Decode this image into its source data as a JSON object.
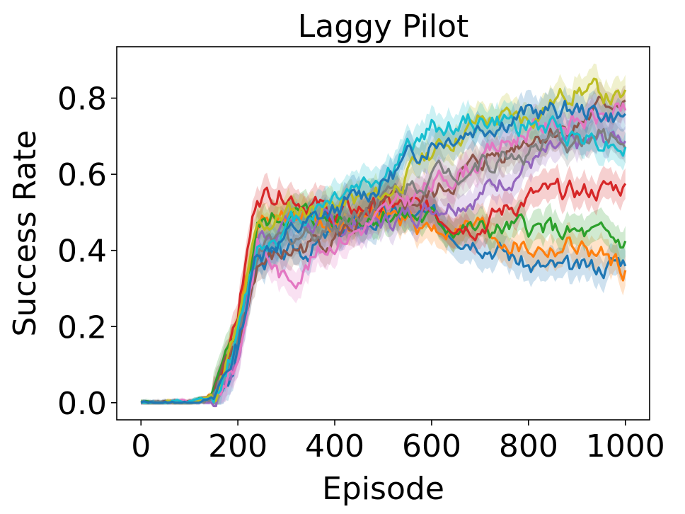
{
  "chart_data": {
    "type": "line",
    "title": "Laggy Pilot",
    "xlabel": "Episode",
    "ylabel": "Success Rate",
    "xlim": [
      -50,
      1050
    ],
    "ylim": [
      -0.045,
      0.935
    ],
    "xticks": [
      0,
      200,
      400,
      600,
      800,
      1000
    ],
    "xtick_labels": [
      "0",
      "200",
      "400",
      "600",
      "800",
      "1000"
    ],
    "yticks": [
      0.0,
      0.2,
      0.4,
      0.6,
      0.8
    ],
    "ytick_labels": [
      "0.0",
      "0.2",
      "0.4",
      "0.6",
      "0.8"
    ],
    "grid": false,
    "legend": "none",
    "x": [
      0,
      100,
      150,
      200,
      240,
      300,
      400,
      500,
      600,
      700,
      800,
      900,
      1000
    ],
    "series": [
      {
        "color": "#1f77b4",
        "values": [
          0.0,
          0.0,
          0.01,
          0.13,
          0.38,
          0.38,
          0.44,
          0.49,
          0.48,
          0.44,
          0.36,
          0.34,
          0.38
        ],
        "band": 0.04
      },
      {
        "color": "#ff7f0e",
        "values": [
          0.0,
          0.0,
          0.02,
          0.22,
          0.48,
          0.5,
          0.47,
          0.49,
          0.46,
          0.46,
          0.4,
          0.41,
          0.35
        ],
        "band": 0.04
      },
      {
        "color": "#2ca02c",
        "values": [
          0.0,
          0.0,
          0.02,
          0.17,
          0.46,
          0.5,
          0.48,
          0.5,
          0.48,
          0.45,
          0.46,
          0.44,
          0.42
        ],
        "band": 0.04
      },
      {
        "color": "#d62728",
        "values": [
          0.0,
          0.0,
          0.02,
          0.24,
          0.55,
          0.56,
          0.49,
          0.52,
          0.5,
          0.47,
          0.54,
          0.55,
          0.57
        ],
        "band": 0.04
      },
      {
        "color": "#9467bd",
        "values": [
          0.0,
          0.0,
          0.0,
          0.12,
          0.43,
          0.48,
          0.46,
          0.47,
          0.52,
          0.55,
          0.63,
          0.67,
          0.7
        ],
        "band": 0.04
      },
      {
        "color": "#8c564b",
        "values": [
          0.0,
          0.0,
          0.02,
          0.14,
          0.36,
          0.39,
          0.44,
          0.5,
          0.54,
          0.63,
          0.7,
          0.73,
          0.81
        ],
        "band": 0.04
      },
      {
        "color": "#e377c2",
        "values": [
          0.0,
          0.0,
          0.01,
          0.11,
          0.42,
          0.32,
          0.43,
          0.49,
          0.57,
          0.64,
          0.72,
          0.74,
          0.76
        ],
        "band": 0.04
      },
      {
        "color": "#7f7f7f",
        "values": [
          0.0,
          0.0,
          0.01,
          0.16,
          0.39,
          0.43,
          0.47,
          0.54,
          0.6,
          0.63,
          0.66,
          0.69,
          0.7
        ],
        "band": 0.04
      },
      {
        "color": "#bcbd22",
        "values": [
          0.0,
          0.0,
          0.02,
          0.19,
          0.45,
          0.5,
          0.52,
          0.54,
          0.66,
          0.74,
          0.75,
          0.83,
          0.79
        ],
        "band": 0.04
      },
      {
        "color": "#17becf",
        "values": [
          0.0,
          0.0,
          0.01,
          0.17,
          0.41,
          0.46,
          0.55,
          0.6,
          0.72,
          0.74,
          0.73,
          0.71,
          0.68
        ],
        "band": 0.04
      },
      {
        "color": "#1f77b4",
        "values": [
          0.0,
          0.0,
          0.01,
          0.15,
          0.4,
          0.44,
          0.5,
          0.58,
          0.69,
          0.73,
          0.76,
          0.77,
          0.75
        ],
        "band": 0.04
      }
    ]
  }
}
